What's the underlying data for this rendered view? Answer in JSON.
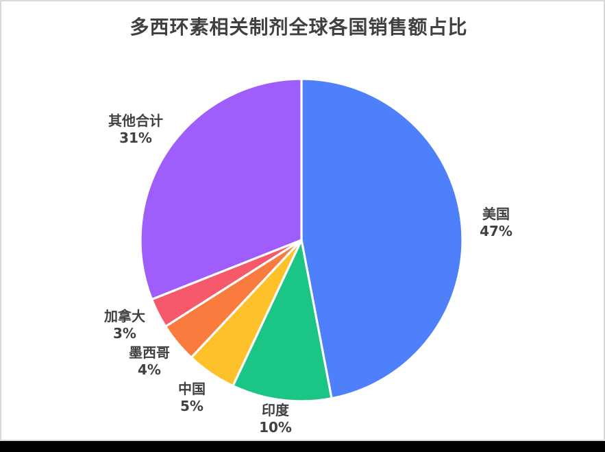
{
  "page": {
    "card_background": "#FFFFFF",
    "card_border_color": "#D9D9D9",
    "bottom_bar_color": "#000000",
    "text_color": "#404040"
  },
  "chart_data": {
    "type": "pie",
    "title": "多西环素相关制剂全球各国销售额占比",
    "legend": "none",
    "start_angle_deg": 0,
    "direction": "clockwise",
    "slice_separator_color": "#FFFFFF",
    "slices": [
      {
        "key": "usa",
        "name": "美国",
        "value": 47,
        "display": "47%",
        "color": "#4D80FA"
      },
      {
        "key": "india",
        "name": "印度",
        "value": 10,
        "display": "10%",
        "color": "#1AC586"
      },
      {
        "key": "china",
        "name": "中国",
        "value": 5,
        "display": "5%",
        "color": "#FDC12A"
      },
      {
        "key": "mexico",
        "name": "墨西哥",
        "value": 4,
        "display": "4%",
        "color": "#F97B3E"
      },
      {
        "key": "canada",
        "name": "加拿大",
        "value": 3,
        "display": "3%",
        "color": "#F6596A"
      },
      {
        "key": "others",
        "name": "其他合计",
        "value": 31,
        "display": "31%",
        "color": "#9F5EFB"
      }
    ]
  }
}
